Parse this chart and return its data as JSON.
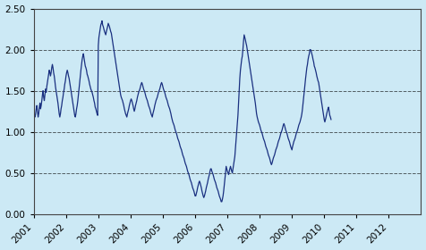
{
  "background_color": "#cce9f5",
  "line_color": "#1a3080",
  "line_width": 0.9,
  "ylim": [
    0.0,
    2.5
  ],
  "yticks": [
    0.0,
    0.5,
    1.0,
    1.5,
    2.0,
    2.5
  ],
  "ytick_labels": [
    "0.00",
    "0.50",
    "1.00",
    "1.50",
    "2.00",
    "2.50"
  ],
  "grid_color": "#000000",
  "grid_linestyle": "--",
  "grid_alpha": 0.6,
  "xtick_labels": [
    "2001",
    "2002",
    "2003",
    "2004",
    "2005",
    "2006",
    "2007",
    "2008",
    "2009",
    "2010",
    "2011",
    "2012"
  ],
  "data": [
    [
      0,
      1.25
    ],
    [
      1,
      1.2
    ],
    [
      2,
      1.18
    ],
    [
      3,
      1.22
    ],
    [
      4,
      1.28
    ],
    [
      5,
      1.32
    ],
    [
      6,
      1.25
    ],
    [
      7,
      1.18
    ],
    [
      8,
      1.22
    ],
    [
      9,
      1.3
    ],
    [
      10,
      1.35
    ],
    [
      11,
      1.28
    ],
    [
      12,
      1.32
    ],
    [
      13,
      1.38
    ],
    [
      14,
      1.45
    ],
    [
      15,
      1.5
    ],
    [
      16,
      1.42
    ],
    [
      17,
      1.38
    ],
    [
      18,
      1.45
    ],
    [
      19,
      1.52
    ],
    [
      20,
      1.48
    ],
    [
      21,
      1.55
    ],
    [
      22,
      1.6
    ],
    [
      23,
      1.65
    ],
    [
      24,
      1.7
    ],
    [
      25,
      1.75
    ],
    [
      26,
      1.72
    ],
    [
      27,
      1.68
    ],
    [
      28,
      1.72
    ],
    [
      29,
      1.78
    ],
    [
      30,
      1.82
    ],
    [
      31,
      1.78
    ],
    [
      32,
      1.72
    ],
    [
      33,
      1.68
    ],
    [
      34,
      1.62
    ],
    [
      35,
      1.55
    ],
    [
      36,
      1.5
    ],
    [
      37,
      1.45
    ],
    [
      38,
      1.4
    ],
    [
      39,
      1.35
    ],
    [
      40,
      1.28
    ],
    [
      41,
      1.22
    ],
    [
      42,
      1.18
    ],
    [
      43,
      1.22
    ],
    [
      44,
      1.28
    ],
    [
      45,
      1.32
    ],
    [
      46,
      1.38
    ],
    [
      47,
      1.42
    ],
    [
      48,
      1.48
    ],
    [
      49,
      1.52
    ],
    [
      50,
      1.58
    ],
    [
      51,
      1.62
    ],
    [
      52,
      1.68
    ],
    [
      53,
      1.72
    ],
    [
      54,
      1.75
    ],
    [
      55,
      1.72
    ],
    [
      56,
      1.68
    ],
    [
      57,
      1.65
    ],
    [
      58,
      1.6
    ],
    [
      59,
      1.55
    ],
    [
      60,
      1.5
    ],
    [
      61,
      1.45
    ],
    [
      62,
      1.4
    ],
    [
      63,
      1.35
    ],
    [
      64,
      1.3
    ],
    [
      65,
      1.25
    ],
    [
      66,
      1.2
    ],
    [
      67,
      1.18
    ],
    [
      68,
      1.22
    ],
    [
      69,
      1.28
    ],
    [
      70,
      1.32
    ],
    [
      71,
      1.38
    ],
    [
      72,
      1.45
    ],
    [
      73,
      1.52
    ],
    [
      74,
      1.6
    ],
    [
      75,
      1.68
    ],
    [
      76,
      1.75
    ],
    [
      77,
      1.82
    ],
    [
      78,
      1.88
    ],
    [
      79,
      1.92
    ],
    [
      80,
      1.95
    ],
    [
      81,
      1.9
    ],
    [
      82,
      1.85
    ],
    [
      83,
      1.8
    ],
    [
      84,
      1.78
    ],
    [
      85,
      1.75
    ],
    [
      86,
      1.7
    ],
    [
      87,
      1.68
    ],
    [
      88,
      1.65
    ],
    [
      89,
      1.62
    ],
    [
      90,
      1.58
    ],
    [
      91,
      1.55
    ],
    [
      92,
      1.52
    ],
    [
      93,
      1.5
    ],
    [
      94,
      1.48
    ],
    [
      95,
      1.45
    ],
    [
      96,
      1.42
    ],
    [
      97,
      1.38
    ],
    [
      98,
      1.35
    ],
    [
      99,
      1.3
    ],
    [
      100,
      1.28
    ],
    [
      101,
      1.25
    ],
    [
      102,
      1.22
    ],
    [
      103,
      1.2
    ],
    [
      104,
      2.05
    ],
    [
      105,
      2.15
    ],
    [
      106,
      2.2
    ],
    [
      107,
      2.25
    ],
    [
      108,
      2.3
    ],
    [
      109,
      2.32
    ],
    [
      110,
      2.35
    ],
    [
      111,
      2.3
    ],
    [
      112,
      2.28
    ],
    [
      113,
      2.25
    ],
    [
      114,
      2.22
    ],
    [
      115,
      2.2
    ],
    [
      116,
      2.18
    ],
    [
      117,
      2.22
    ],
    [
      118,
      2.25
    ],
    [
      119,
      2.28
    ],
    [
      120,
      2.32
    ],
    [
      121,
      2.3
    ],
    [
      122,
      2.28
    ],
    [
      123,
      2.25
    ],
    [
      124,
      2.22
    ],
    [
      125,
      2.2
    ],
    [
      126,
      2.15
    ],
    [
      127,
      2.1
    ],
    [
      128,
      2.05
    ],
    [
      129,
      2.0
    ],
    [
      130,
      1.95
    ],
    [
      131,
      1.9
    ],
    [
      132,
      1.85
    ],
    [
      133,
      1.8
    ],
    [
      134,
      1.75
    ],
    [
      135,
      1.7
    ],
    [
      136,
      1.65
    ],
    [
      137,
      1.6
    ],
    [
      138,
      1.55
    ],
    [
      139,
      1.5
    ],
    [
      140,
      1.45
    ],
    [
      141,
      1.42
    ],
    [
      142,
      1.4
    ],
    [
      143,
      1.38
    ],
    [
      144,
      1.35
    ],
    [
      145,
      1.32
    ],
    [
      146,
      1.28
    ],
    [
      147,
      1.25
    ],
    [
      148,
      1.22
    ],
    [
      149,
      1.2
    ],
    [
      150,
      1.18
    ],
    [
      151,
      1.22
    ],
    [
      152,
      1.25
    ],
    [
      153,
      1.28
    ],
    [
      154,
      1.32
    ],
    [
      155,
      1.35
    ],
    [
      156,
      1.38
    ],
    [
      157,
      1.4
    ],
    [
      158,
      1.38
    ],
    [
      159,
      1.35
    ],
    [
      160,
      1.32
    ],
    [
      161,
      1.28
    ],
    [
      162,
      1.25
    ],
    [
      163,
      1.28
    ],
    [
      164,
      1.32
    ],
    [
      165,
      1.35
    ],
    [
      166,
      1.38
    ],
    [
      167,
      1.42
    ],
    [
      168,
      1.45
    ],
    [
      169,
      1.48
    ],
    [
      170,
      1.5
    ],
    [
      171,
      1.52
    ],
    [
      172,
      1.55
    ],
    [
      173,
      1.58
    ],
    [
      174,
      1.6
    ],
    [
      175,
      1.58
    ],
    [
      176,
      1.55
    ],
    [
      177,
      1.52
    ],
    [
      178,
      1.5
    ],
    [
      179,
      1.48
    ],
    [
      180,
      1.45
    ],
    [
      181,
      1.42
    ],
    [
      182,
      1.4
    ],
    [
      183,
      1.38
    ],
    [
      184,
      1.35
    ],
    [
      185,
      1.32
    ],
    [
      186,
      1.3
    ],
    [
      187,
      1.28
    ],
    [
      188,
      1.25
    ],
    [
      189,
      1.22
    ],
    [
      190,
      1.2
    ],
    [
      191,
      1.18
    ],
    [
      192,
      1.22
    ],
    [
      193,
      1.25
    ],
    [
      194,
      1.28
    ],
    [
      195,
      1.32
    ],
    [
      196,
      1.35
    ],
    [
      197,
      1.38
    ],
    [
      198,
      1.4
    ],
    [
      199,
      1.42
    ],
    [
      200,
      1.45
    ],
    [
      201,
      1.48
    ],
    [
      202,
      1.5
    ],
    [
      203,
      1.52
    ],
    [
      204,
      1.55
    ],
    [
      205,
      1.58
    ],
    [
      206,
      1.6
    ],
    [
      207,
      1.58
    ],
    [
      208,
      1.55
    ],
    [
      209,
      1.52
    ],
    [
      210,
      1.5
    ],
    [
      211,
      1.48
    ],
    [
      212,
      1.45
    ],
    [
      213,
      1.42
    ],
    [
      214,
      1.4
    ],
    [
      215,
      1.38
    ],
    [
      216,
      1.35
    ],
    [
      217,
      1.32
    ],
    [
      218,
      1.3
    ],
    [
      219,
      1.28
    ],
    [
      220,
      1.25
    ],
    [
      221,
      1.22
    ],
    [
      222,
      1.18
    ],
    [
      223,
      1.15
    ],
    [
      224,
      1.12
    ],
    [
      225,
      1.1
    ],
    [
      226,
      1.08
    ],
    [
      227,
      1.05
    ],
    [
      228,
      1.02
    ],
    [
      229,
      1.0
    ],
    [
      230,
      0.98
    ],
    [
      231,
      0.95
    ],
    [
      232,
      0.92
    ],
    [
      233,
      0.9
    ],
    [
      234,
      0.88
    ],
    [
      235,
      0.85
    ],
    [
      236,
      0.82
    ],
    [
      237,
      0.8
    ],
    [
      238,
      0.78
    ],
    [
      239,
      0.75
    ],
    [
      240,
      0.72
    ],
    [
      241,
      0.7
    ],
    [
      242,
      0.68
    ],
    [
      243,
      0.65
    ],
    [
      244,
      0.62
    ],
    [
      245,
      0.6
    ],
    [
      246,
      0.58
    ],
    [
      247,
      0.55
    ],
    [
      248,
      0.52
    ],
    [
      249,
      0.5
    ],
    [
      250,
      0.48
    ],
    [
      251,
      0.45
    ],
    [
      252,
      0.42
    ],
    [
      253,
      0.4
    ],
    [
      254,
      0.38
    ],
    [
      255,
      0.35
    ],
    [
      256,
      0.32
    ],
    [
      257,
      0.3
    ],
    [
      258,
      0.28
    ],
    [
      259,
      0.25
    ],
    [
      260,
      0.22
    ],
    [
      261,
      0.22
    ],
    [
      262,
      0.25
    ],
    [
      263,
      0.28
    ],
    [
      264,
      0.32
    ],
    [
      265,
      0.35
    ],
    [
      266,
      0.38
    ],
    [
      267,
      0.4
    ],
    [
      268,
      0.38
    ],
    [
      269,
      0.35
    ],
    [
      270,
      0.32
    ],
    [
      271,
      0.28
    ],
    [
      272,
      0.25
    ],
    [
      273,
      0.22
    ],
    [
      274,
      0.2
    ],
    [
      275,
      0.22
    ],
    [
      276,
      0.25
    ],
    [
      277,
      0.28
    ],
    [
      278,
      0.32
    ],
    [
      279,
      0.35
    ],
    [
      280,
      0.38
    ],
    [
      281,
      0.42
    ],
    [
      282,
      0.45
    ],
    [
      283,
      0.48
    ],
    [
      284,
      0.52
    ],
    [
      285,
      0.55
    ],
    [
      286,
      0.55
    ],
    [
      287,
      0.52
    ],
    [
      288,
      0.5
    ],
    [
      289,
      0.48
    ],
    [
      290,
      0.45
    ],
    [
      291,
      0.42
    ],
    [
      292,
      0.4
    ],
    [
      293,
      0.38
    ],
    [
      294,
      0.35
    ],
    [
      295,
      0.32
    ],
    [
      296,
      0.3
    ],
    [
      297,
      0.28
    ],
    [
      298,
      0.25
    ],
    [
      299,
      0.22
    ],
    [
      300,
      0.2
    ],
    [
      301,
      0.18
    ],
    [
      302,
      0.15
    ],
    [
      303,
      0.15
    ],
    [
      304,
      0.18
    ],
    [
      305,
      0.22
    ],
    [
      306,
      0.28
    ],
    [
      307,
      0.35
    ],
    [
      308,
      0.42
    ],
    [
      309,
      0.5
    ],
    [
      310,
      0.58
    ],
    [
      311,
      0.55
    ],
    [
      312,
      0.52
    ],
    [
      313,
      0.5
    ],
    [
      314,
      0.48
    ],
    [
      315,
      0.52
    ],
    [
      316,
      0.55
    ],
    [
      317,
      0.58
    ],
    [
      318,
      0.55
    ],
    [
      319,
      0.52
    ],
    [
      320,
      0.5
    ],
    [
      321,
      0.55
    ],
    [
      322,
      0.6
    ],
    [
      323,
      0.65
    ],
    [
      324,
      0.7
    ],
    [
      325,
      0.8
    ],
    [
      326,
      0.9
    ],
    [
      327,
      1.0
    ],
    [
      328,
      1.1
    ],
    [
      329,
      1.2
    ],
    [
      330,
      1.35
    ],
    [
      331,
      1.5
    ],
    [
      332,
      1.65
    ],
    [
      333,
      1.75
    ],
    [
      334,
      1.82
    ],
    [
      335,
      1.88
    ],
    [
      336,
      1.92
    ],
    [
      337,
      2.0
    ],
    [
      338,
      2.1
    ],
    [
      339,
      2.18
    ],
    [
      340,
      2.15
    ],
    [
      341,
      2.12
    ],
    [
      342,
      2.08
    ],
    [
      343,
      2.05
    ],
    [
      344,
      2.0
    ],
    [
      345,
      1.95
    ],
    [
      346,
      1.9
    ],
    [
      347,
      1.85
    ],
    [
      348,
      1.8
    ],
    [
      349,
      1.75
    ],
    [
      350,
      1.7
    ],
    [
      351,
      1.65
    ],
    [
      352,
      1.6
    ],
    [
      353,
      1.55
    ],
    [
      354,
      1.5
    ],
    [
      355,
      1.45
    ],
    [
      356,
      1.4
    ],
    [
      357,
      1.35
    ],
    [
      358,
      1.28
    ],
    [
      359,
      1.22
    ],
    [
      360,
      1.18
    ],
    [
      361,
      1.15
    ],
    [
      362,
      1.12
    ],
    [
      363,
      1.1
    ],
    [
      364,
      1.08
    ],
    [
      365,
      1.05
    ],
    [
      366,
      1.02
    ],
    [
      367,
      1.0
    ],
    [
      368,
      0.98
    ],
    [
      369,
      0.95
    ],
    [
      370,
      0.92
    ],
    [
      371,
      0.9
    ],
    [
      372,
      0.88
    ],
    [
      373,
      0.85
    ],
    [
      374,
      0.82
    ],
    [
      375,
      0.8
    ],
    [
      376,
      0.78
    ],
    [
      377,
      0.75
    ],
    [
      378,
      0.72
    ],
    [
      379,
      0.7
    ],
    [
      380,
      0.68
    ],
    [
      381,
      0.65
    ],
    [
      382,
      0.62
    ],
    [
      383,
      0.6
    ],
    [
      384,
      0.62
    ],
    [
      385,
      0.65
    ],
    [
      386,
      0.68
    ],
    [
      387,
      0.7
    ],
    [
      388,
      0.72
    ],
    [
      389,
      0.75
    ],
    [
      390,
      0.78
    ],
    [
      391,
      0.8
    ],
    [
      392,
      0.82
    ],
    [
      393,
      0.85
    ],
    [
      394,
      0.88
    ],
    [
      395,
      0.9
    ],
    [
      396,
      0.92
    ],
    [
      397,
      0.95
    ],
    [
      398,
      0.98
    ],
    [
      399,
      1.0
    ],
    [
      400,
      1.02
    ],
    [
      401,
      1.05
    ],
    [
      402,
      1.08
    ],
    [
      403,
      1.1
    ],
    [
      404,
      1.08
    ],
    [
      405,
      1.05
    ],
    [
      406,
      1.02
    ],
    [
      407,
      1.0
    ],
    [
      408,
      0.98
    ],
    [
      409,
      0.95
    ],
    [
      410,
      0.92
    ],
    [
      411,
      0.9
    ],
    [
      412,
      0.88
    ],
    [
      413,
      0.85
    ],
    [
      414,
      0.82
    ],
    [
      415,
      0.8
    ],
    [
      416,
      0.78
    ],
    [
      417,
      0.82
    ],
    [
      418,
      0.85
    ],
    [
      419,
      0.88
    ],
    [
      420,
      0.9
    ],
    [
      421,
      0.92
    ],
    [
      422,
      0.95
    ],
    [
      423,
      0.98
    ],
    [
      424,
      1.0
    ],
    [
      425,
      1.02
    ],
    [
      426,
      1.05
    ],
    [
      427,
      1.08
    ],
    [
      428,
      1.1
    ],
    [
      429,
      1.12
    ],
    [
      430,
      1.15
    ],
    [
      431,
      1.18
    ],
    [
      432,
      1.22
    ],
    [
      433,
      1.28
    ],
    [
      434,
      1.35
    ],
    [
      435,
      1.42
    ],
    [
      436,
      1.5
    ],
    [
      437,
      1.58
    ],
    [
      438,
      1.65
    ],
    [
      439,
      1.72
    ],
    [
      440,
      1.78
    ],
    [
      441,
      1.82
    ],
    [
      442,
      1.88
    ],
    [
      443,
      1.92
    ],
    [
      444,
      1.95
    ],
    [
      445,
      2.0
    ],
    [
      446,
      2.0
    ],
    [
      447,
      1.98
    ],
    [
      448,
      1.95
    ],
    [
      449,
      1.92
    ],
    [
      450,
      1.88
    ],
    [
      451,
      1.85
    ],
    [
      452,
      1.8
    ],
    [
      453,
      1.78
    ],
    [
      454,
      1.75
    ],
    [
      455,
      1.72
    ],
    [
      456,
      1.68
    ],
    [
      457,
      1.65
    ],
    [
      458,
      1.62
    ],
    [
      459,
      1.6
    ],
    [
      460,
      1.55
    ],
    [
      461,
      1.5
    ],
    [
      462,
      1.45
    ],
    [
      463,
      1.4
    ],
    [
      464,
      1.35
    ],
    [
      465,
      1.3
    ],
    [
      466,
      1.25
    ],
    [
      467,
      1.2
    ],
    [
      468,
      1.15
    ],
    [
      469,
      1.12
    ],
    [
      470,
      1.15
    ],
    [
      471,
      1.18
    ],
    [
      472,
      1.22
    ],
    [
      473,
      1.25
    ],
    [
      474,
      1.28
    ],
    [
      475,
      1.3
    ],
    [
      476,
      1.25
    ],
    [
      477,
      1.2
    ],
    [
      478,
      1.18
    ],
    [
      479,
      1.15
    ]
  ],
  "xtick_positions": [
    0,
    52,
    104,
    156,
    208,
    260,
    312,
    364,
    416,
    468,
    520,
    572
  ],
  "xlim": [
    0,
    624
  ]
}
